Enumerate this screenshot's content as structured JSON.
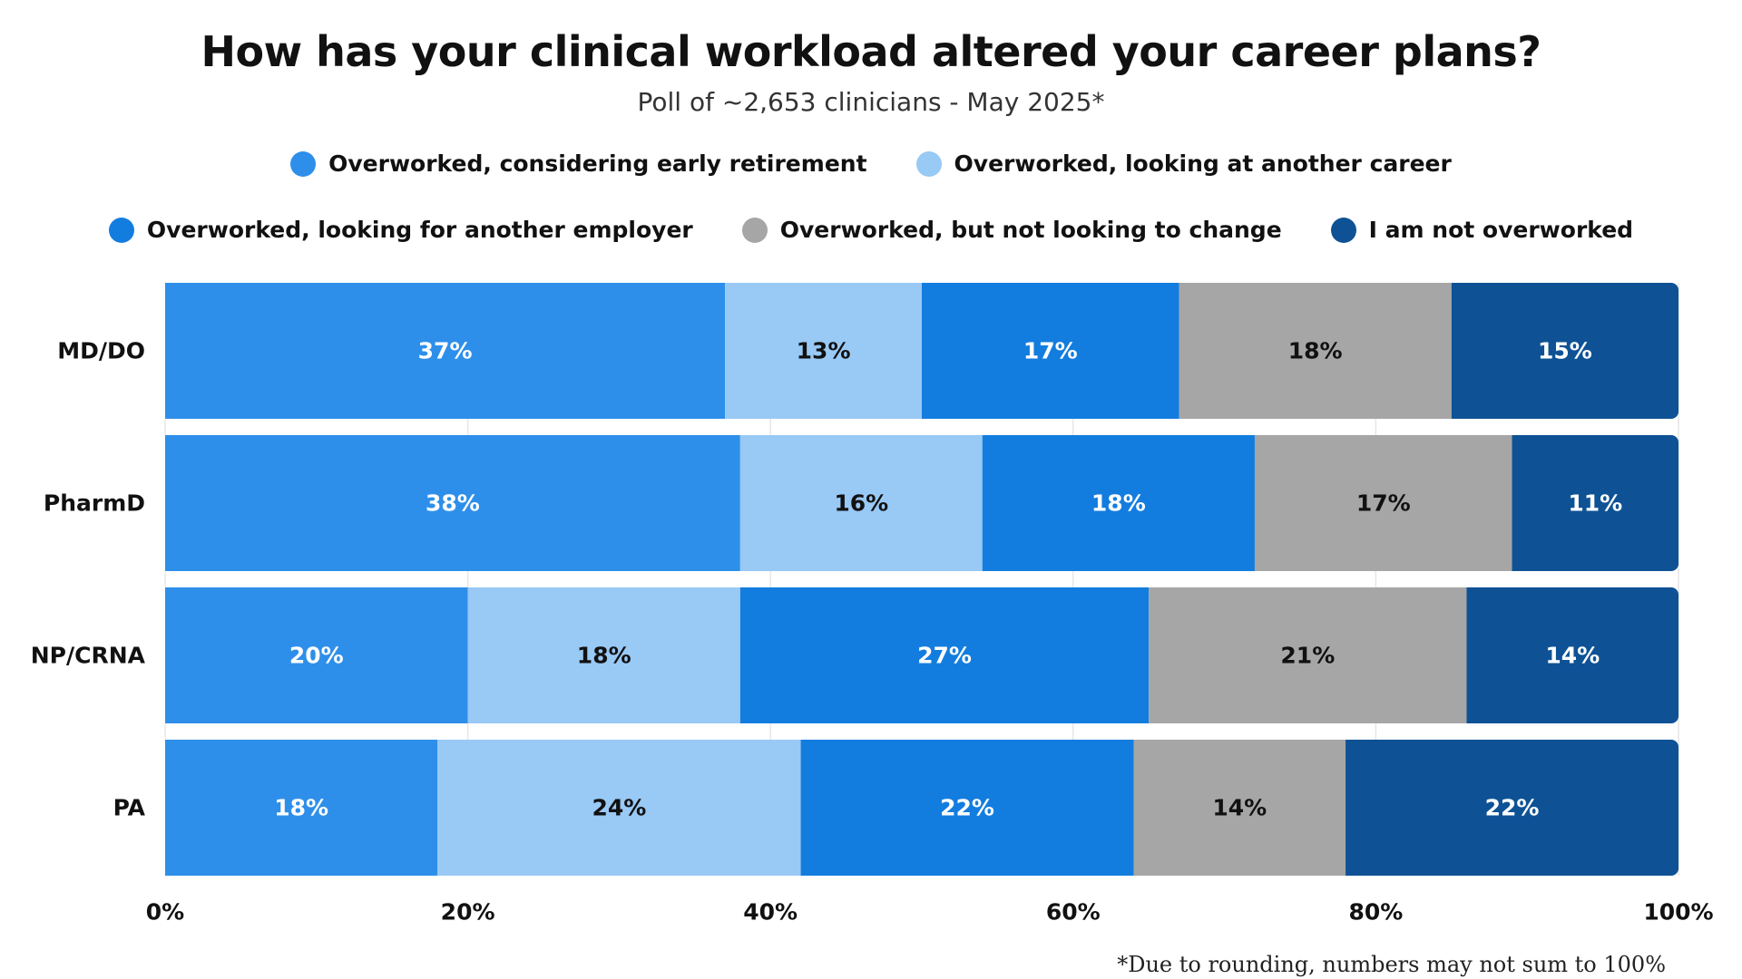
{
  "chart_data": {
    "type": "bar",
    "orientation": "horizontal",
    "stacked": true,
    "title": "How has your clinical workload altered your career plans?",
    "subtitle": "Poll of ~2,653 clinicians - May 2025*",
    "categories": [
      "MD/DO",
      "PharmD",
      "NP/CRNA",
      "PA"
    ],
    "series": [
      {
        "name": "Overworked, considering early retirement",
        "color": "#2E8FEA",
        "label_color": "#ffffff",
        "values": [
          37,
          38,
          20,
          18
        ]
      },
      {
        "name": "Overworked, looking at another career",
        "color": "#99C9F5",
        "label_color": "#111111",
        "values": [
          13,
          16,
          18,
          24
        ]
      },
      {
        "name": "Overworked, looking for another employer",
        "color": "#137DDF",
        "label_color": "#ffffff",
        "values": [
          17,
          18,
          27,
          22
        ]
      },
      {
        "name": "Overworked, but not looking to change",
        "color": "#A6A6A6",
        "label_color": "#111111",
        "values": [
          18,
          17,
          21,
          14
        ]
      },
      {
        "name": "I am not overworked",
        "color": "#0E5295",
        "label_color": "#ffffff",
        "values": [
          15,
          11,
          14,
          22
        ]
      }
    ],
    "data_labels": [
      [
        "37%",
        "38%",
        "20%",
        "18%"
      ],
      [
        "13%",
        "16%",
        "18%",
        "24%"
      ],
      [
        "17%",
        "18%",
        "27%",
        "22%"
      ],
      [
        "18%",
        "17%",
        "21%",
        "14%"
      ],
      [
        "15%",
        "11%",
        "14%",
        "22%"
      ]
    ],
    "xlim": [
      0,
      100
    ],
    "xticks": [
      0,
      20,
      40,
      60,
      80,
      100
    ],
    "xtick_labels": [
      "0%",
      "20%",
      "40%",
      "60%",
      "80%",
      "100%"
    ],
    "grid": true,
    "legend_position": "top-center",
    "footnote": "*Due to rounding, numbers may not sum to 100%"
  }
}
